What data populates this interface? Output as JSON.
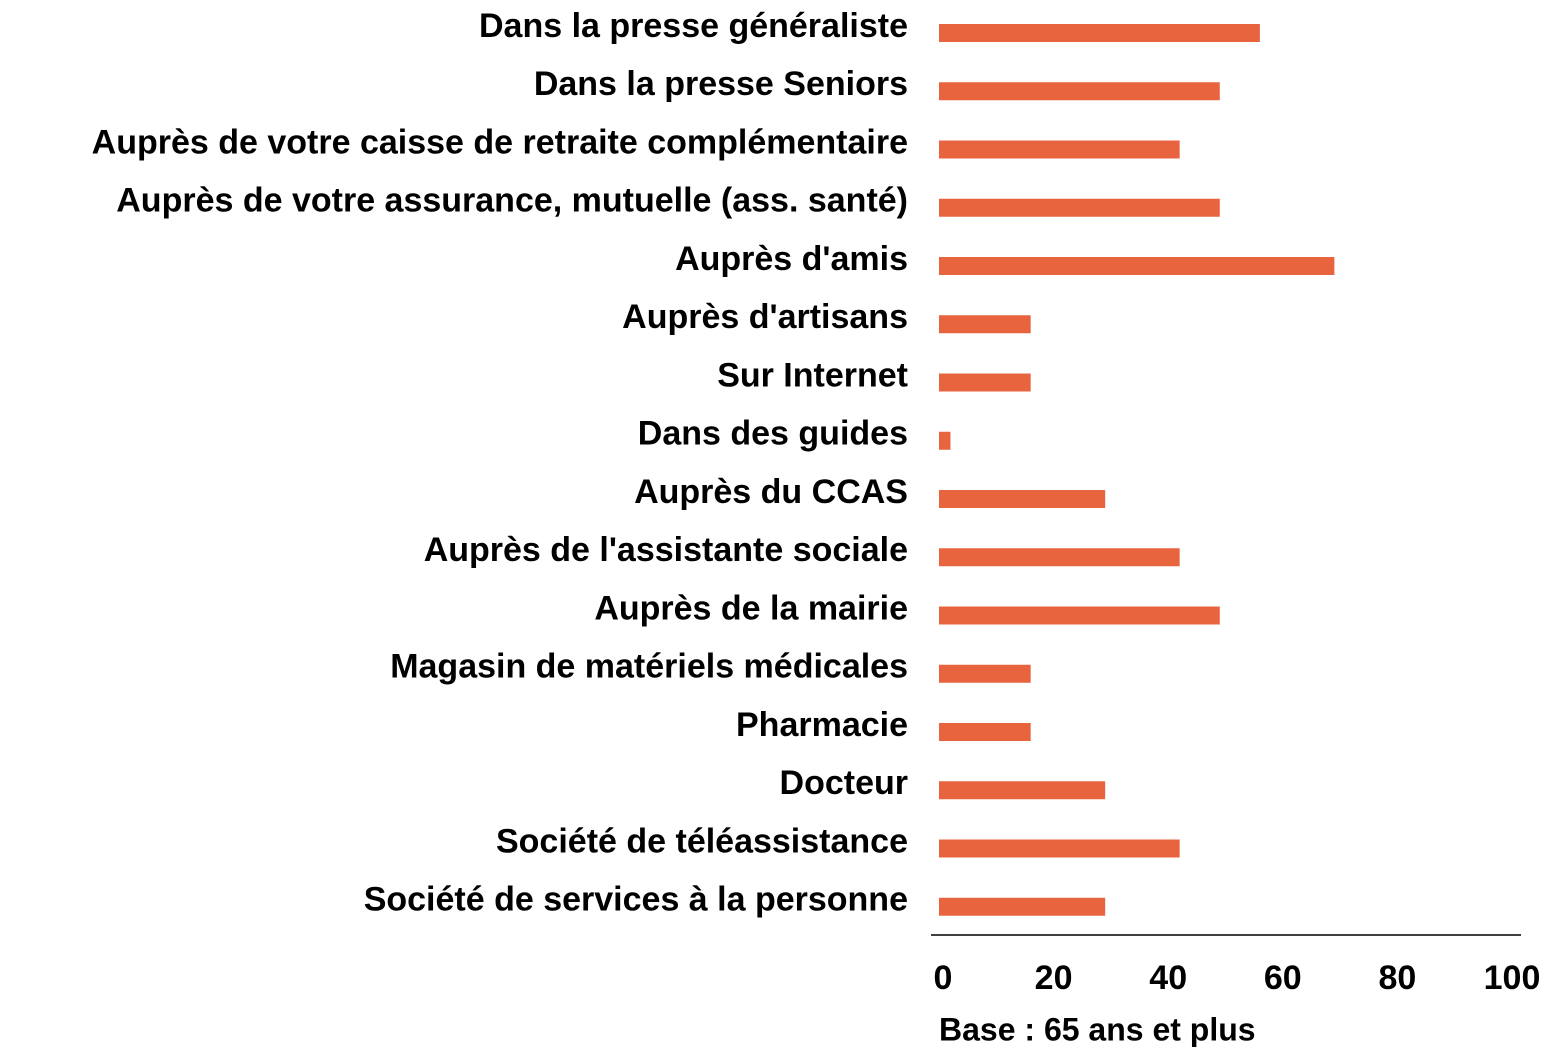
{
  "chart_data": {
    "type": "barh",
    "categories": [
      "Dans la presse généraliste",
      "Dans la presse Seniors",
      "Auprès de votre caisse de retraite complémentaire",
      "Auprès de votre assurance, mutuelle (ass.  santé)",
      "Auprès d'amis",
      "Auprès d'artisans",
      "Sur Internet",
      "Dans des guides",
      "Auprès du CCAS",
      "Auprès de l'assistante sociale",
      "Auprès de la mairie",
      "Magasin de  matériels médicales",
      "Pharmacie",
      "Docteur",
      "Société de téléassistance",
      "Société de services à la personne"
    ],
    "values": [
      56,
      49,
      42,
      49,
      69,
      16,
      16,
      2,
      29,
      42,
      49,
      16,
      16,
      29,
      42,
      29
    ],
    "color": "#e8643f",
    "xlim": [
      0,
      100
    ],
    "xticks": [
      0,
      20,
      40,
      60,
      80,
      100
    ],
    "note": "Base : 65 ans et plus"
  }
}
